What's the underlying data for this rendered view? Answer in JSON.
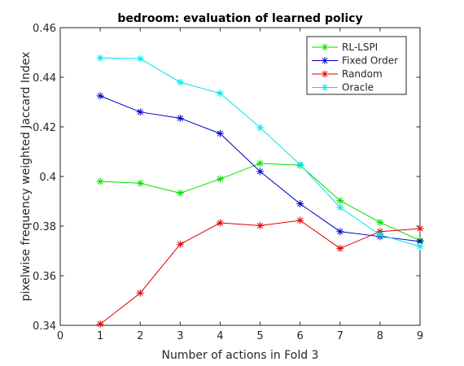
{
  "chart_data": {
    "type": "line",
    "title": "bedroom: evaluation of learned policy",
    "xlabel": "Number of actions in Fold 3",
    "ylabel": "pixelwise frequency weighted Jaccard Index",
    "xlim": [
      0,
      9
    ],
    "ylim": [
      0.34,
      0.46
    ],
    "xticks": [
      0,
      1,
      2,
      3,
      4,
      5,
      6,
      7,
      8,
      9
    ],
    "yticks": [
      0.34,
      0.36,
      0.38,
      0.4,
      0.42,
      0.44,
      0.46
    ],
    "xtick_labels": [
      "0",
      "1",
      "2",
      "3",
      "4",
      "5",
      "6",
      "7",
      "8",
      "9"
    ],
    "ytick_labels": [
      "0.34",
      "0.36",
      "0.38",
      "0.4",
      "0.42",
      "0.44",
      "0.46"
    ],
    "grid": false,
    "legend_position": "top-right",
    "x": [
      1,
      2,
      3,
      4,
      5,
      6,
      7,
      8,
      9
    ],
    "series": [
      {
        "name": "RL-LSPI",
        "color": "#00e000",
        "marker": "asterisk",
        "values": [
          0.398,
          0.3973,
          0.3933,
          0.399,
          0.4053,
          0.4045,
          0.3903,
          0.3815,
          0.3742
        ]
      },
      {
        "name": "Fixed Order",
        "color": "#0000cc",
        "marker": "asterisk",
        "values": [
          0.4325,
          0.426,
          0.4235,
          0.4173,
          0.402,
          0.389,
          0.3778,
          0.3758,
          0.3738
        ]
      },
      {
        "name": "Random",
        "color": "#dd0000",
        "marker": "asterisk",
        "values": [
          0.3405,
          0.353,
          0.3727,
          0.3813,
          0.3802,
          0.3823,
          0.371,
          0.3778,
          0.379
        ]
      },
      {
        "name": "Oracle",
        "color": "#00e5e5",
        "marker": "asterisk",
        "values": [
          0.4478,
          0.4475,
          0.438,
          0.4335,
          0.4197,
          0.4048,
          0.3875,
          0.3765,
          0.3718
        ]
      }
    ]
  }
}
